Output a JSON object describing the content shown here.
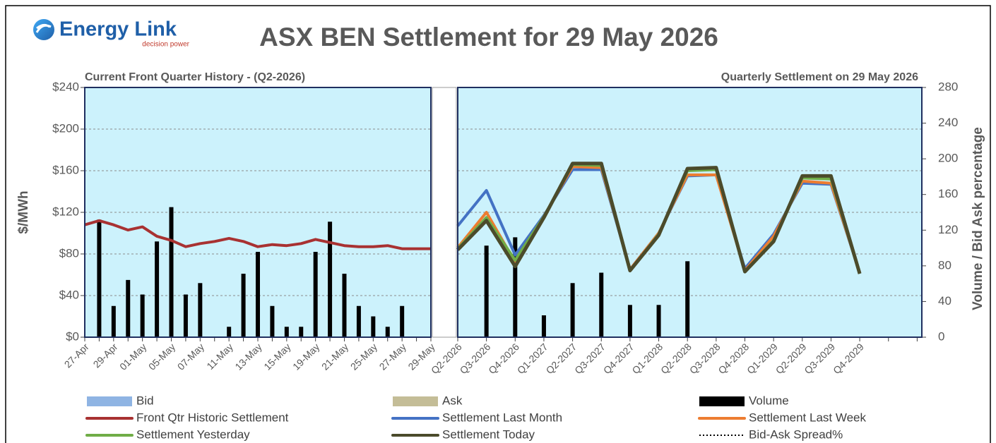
{
  "logo": {
    "name": "Energy Link",
    "tagline": "decision power"
  },
  "chart_data": {
    "type": "combo",
    "title": "ASX BEN Settlement for 29 May 2026",
    "panel_titles": [
      "Current Front Quarter History - (Q2-2026)",
      "Quarterly Settlement on 29 May 2026"
    ],
    "ylabel": "$/MWh",
    "y2label": "Volume / Bid Ask percentage",
    "ylim": [
      0,
      240
    ],
    "yticks": [
      {
        "value": 0,
        "label": "$0"
      },
      {
        "value": 40,
        "label": "$40"
      },
      {
        "value": 80,
        "label": "$80"
      },
      {
        "value": 120,
        "label": "$120"
      },
      {
        "value": 160,
        "label": "$160"
      },
      {
        "value": 200,
        "label": "$200"
      },
      {
        "value": 240,
        "label": "$240"
      }
    ],
    "y2lim": [
      0,
      280
    ],
    "y2ticks": [
      0,
      40,
      80,
      120,
      160,
      200,
      240,
      280
    ],
    "grid": true,
    "split_after": 24,
    "categories": [
      "27-Apr",
      null,
      "29-Apr",
      null,
      "01-May",
      null,
      "05-May",
      null,
      "07-May",
      null,
      "11-May",
      null,
      "13-May",
      null,
      "15-May",
      null,
      "19-May",
      null,
      "21-May",
      null,
      "25-May",
      null,
      "27-May",
      null,
      "29-May",
      "Q2-2026",
      "Q3-2026",
      "Q4-2026",
      "Q1-2027",
      "Q2-2027",
      "Q3-2027",
      "Q4-2027",
      "Q1-2028",
      "Q2-2028",
      "Q3-2028",
      "Q4-2028",
      "Q1-2029",
      "Q2-2029",
      "Q3-2029",
      "Q4-2029",
      null,
      null
    ],
    "series": [
      {
        "name": "Bid",
        "type": "bar",
        "color": "#8fb4e3",
        "values": [
          null,
          null,
          null,
          null,
          null,
          null,
          null,
          null,
          null,
          null,
          null,
          null,
          null,
          null,
          null,
          null,
          null,
          null,
          null,
          null,
          null,
          null,
          null,
          null,
          null,
          null,
          null,
          null,
          null,
          null,
          null,
          null,
          null,
          null,
          null,
          null,
          null,
          null,
          null,
          null,
          null,
          null
        ]
      },
      {
        "name": "Ask",
        "type": "bar",
        "color": "#c4bd97",
        "values": [
          null,
          null,
          null,
          null,
          null,
          null,
          null,
          null,
          null,
          null,
          null,
          null,
          null,
          null,
          null,
          null,
          null,
          null,
          null,
          null,
          null,
          null,
          null,
          null,
          null,
          null,
          null,
          null,
          null,
          null,
          null,
          null,
          null,
          null,
          null,
          null,
          null,
          null,
          null,
          null,
          null,
          null
        ]
      },
      {
        "name": "Volume",
        "type": "bar",
        "color": "#000000",
        "values": [
          null,
          113,
          30,
          55,
          41,
          92,
          125,
          41,
          52,
          null,
          10,
          61,
          82,
          30,
          10,
          10,
          82,
          111,
          61,
          30,
          20,
          10,
          30,
          null,
          null,
          null,
          88,
          96,
          21,
          52,
          62,
          31,
          31,
          73,
          null,
          null,
          null,
          null,
          null,
          null,
          null,
          null
        ]
      },
      {
        "name": "Front Qtr Historic Settlement",
        "type": "line",
        "color": "#a83232",
        "values": [
          108,
          112,
          108,
          103,
          106,
          97,
          93,
          87,
          90,
          92,
          95,
          92,
          87,
          89,
          88,
          90,
          94,
          91,
          88,
          87,
          87,
          88,
          85,
          85,
          85,
          null,
          null,
          null,
          null,
          null,
          null,
          null,
          null,
          null,
          null,
          null,
          null,
          null,
          null,
          null,
          null,
          null
        ]
      },
      {
        "name": "Settlement Last Month",
        "type": "line",
        "color": "#4472c4",
        "values": [
          null,
          null,
          null,
          null,
          null,
          null,
          null,
          null,
          null,
          null,
          null,
          null,
          null,
          null,
          null,
          null,
          null,
          null,
          null,
          null,
          null,
          null,
          null,
          null,
          null,
          107,
          141,
          79,
          117,
          161,
          161,
          65,
          100,
          155,
          156,
          66,
          99,
          148,
          147,
          62,
          null,
          null
        ]
      },
      {
        "name": "Settlement Last Week",
        "type": "line",
        "color": "#ed7d31",
        "values": [
          null,
          null,
          null,
          null,
          null,
          null,
          null,
          null,
          null,
          null,
          null,
          null,
          null,
          null,
          null,
          null,
          null,
          null,
          null,
          null,
          null,
          null,
          null,
          null,
          null,
          86,
          120,
          72,
          116,
          164,
          163,
          65,
          100,
          156,
          156,
          64,
          97,
          150,
          148,
          62,
          null,
          null
        ]
      },
      {
        "name": "Settlement Yesterday",
        "type": "line",
        "color": "#70ad47",
        "values": [
          null,
          null,
          null,
          null,
          null,
          null,
          null,
          null,
          null,
          null,
          null,
          null,
          null,
          null,
          null,
          null,
          null,
          null,
          null,
          null,
          null,
          null,
          null,
          null,
          null,
          85,
          115,
          74,
          116,
          166,
          165,
          64,
          99,
          160,
          161,
          63,
          93,
          153,
          152,
          61,
          null,
          null
        ]
      },
      {
        "name": "Settlement Today",
        "type": "line",
        "color": "#4b4b2b",
        "values": [
          null,
          null,
          null,
          null,
          null,
          null,
          null,
          null,
          null,
          null,
          null,
          null,
          null,
          null,
          null,
          null,
          null,
          null,
          null,
          null,
          null,
          null,
          null,
          null,
          null,
          84,
          112,
          68,
          115,
          167,
          167,
          64,
          98,
          162,
          163,
          63,
          92,
          155,
          155,
          61,
          null,
          null
        ]
      },
      {
        "name": "Bid-Ask Spread%",
        "type": "line",
        "axis": "y2",
        "style": "dotted",
        "color": "#000000",
        "values": [
          null,
          null,
          null,
          null,
          null,
          null,
          null,
          null,
          null,
          null,
          null,
          null,
          null,
          null,
          null,
          null,
          null,
          null,
          null,
          null,
          null,
          null,
          null,
          null,
          null,
          null,
          null,
          null,
          null,
          null,
          null,
          null,
          null,
          null,
          null,
          null,
          null,
          null,
          null,
          null,
          null,
          null
        ]
      }
    ]
  }
}
